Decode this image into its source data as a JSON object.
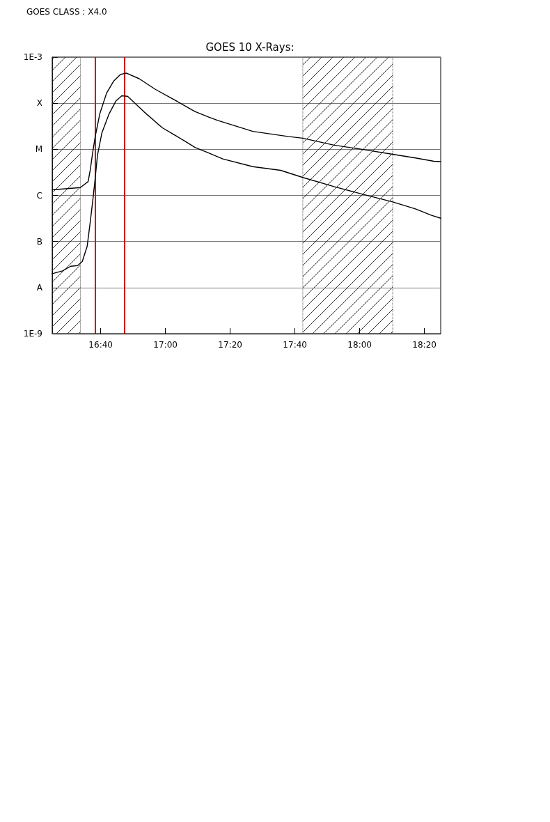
{
  "chart_data": {
    "type": "line",
    "title": "GOES 10 X-Rays:",
    "annotations": [
      "GOES CLASS : X4.0"
    ],
    "series": [
      {
        "color": "#000000",
        "x": [
          16.417,
          16.562,
          16.602,
          16.613,
          16.625,
          16.638,
          16.662,
          16.697,
          16.733,
          16.768,
          16.798,
          16.865,
          16.948,
          17.068,
          17.152,
          17.223,
          17.272,
          17.45,
          17.63,
          17.707,
          17.868,
          18.012,
          18.17,
          18.287,
          18.382,
          18.417
        ],
        "values": [
          1.32e-06,
          1.48e-06,
          2e-06,
          3.6e-06,
          8.3e-06,
          1.86e-05,
          5.9e-05,
          0.000166,
          0.0003,
          0.00042,
          0.00045,
          0.00034,
          0.0002,
          0.000105,
          6.6e-05,
          5e-05,
          4.2e-05,
          2.45e-05,
          1.9e-05,
          1.74e-05,
          1.23e-05,
          1e-05,
          7.8e-06,
          6.5e-06,
          5.5e-06,
          5.4e-06
        ]
      },
      {
        "color": "#000000",
        "x": [
          16.417,
          16.47,
          16.512,
          16.548,
          16.572,
          16.597,
          16.612,
          16.625,
          16.638,
          16.65,
          16.673,
          16.71,
          16.745,
          16.775,
          16.805,
          16.888,
          16.983,
          17.103,
          17.152,
          17.223,
          17.295,
          17.45,
          17.593,
          17.707,
          17.868,
          18.012,
          18.17,
          18.287,
          18.37,
          18.417
        ],
        "values": [
          2e-08,
          2.3e-08,
          2.9e-08,
          3e-08,
          3.7e-08,
          7.9e-08,
          2.5e-07,
          7.2e-07,
          2.3e-06,
          7.4e-06,
          2.3e-05,
          5.9e-05,
          0.000112,
          0.000145,
          0.000141,
          6.6e-05,
          2.95e-05,
          1.48e-05,
          1.1e-05,
          8.3e-06,
          6.2e-06,
          4.2e-06,
          3.5e-06,
          2.45e-06,
          1.55e-06,
          1.07e-06,
          7.2e-07,
          5.1e-07,
          3.7e-07,
          3.2e-07
        ]
      }
    ],
    "xlim": [
      16.417,
      18.417
    ],
    "xticks": [
      {
        "value": 16.6667,
        "label": "16:40"
      },
      {
        "value": 17,
        "label": "17:00"
      },
      {
        "value": 17.3333,
        "label": "17:20"
      },
      {
        "value": 17.6667,
        "label": "17:40"
      },
      {
        "value": 18,
        "label": "18:00"
      },
      {
        "value": 18.3333,
        "label": "18:20"
      }
    ],
    "ylim": [
      1e-09,
      0.001
    ],
    "yticks": [
      {
        "value": 1e-09,
        "label": "1E-9"
      },
      {
        "value": 1e-08,
        "label": "A"
      },
      {
        "value": 1e-07,
        "label": "B"
      },
      {
        "value": 1e-06,
        "label": "C"
      },
      {
        "value": 1e-05,
        "label": "M"
      },
      {
        "value": 0.0001,
        "label": "X"
      },
      {
        "value": 0.001,
        "label": "1E-3"
      }
    ],
    "log": "y",
    "grid": "y",
    "marker": "none",
    "line_style": "solid",
    "ref_lines": [
      {
        "axis": "x",
        "value": 16.635,
        "color": "#cc0000"
      },
      {
        "axis": "x",
        "value": 16.785,
        "color": "#cc0000"
      }
    ],
    "bands": [
      {
        "axis": "x",
        "from": 16.417,
        "to": 16.562
      },
      {
        "axis": "x",
        "from": 17.707,
        "to": 18.17
      }
    ]
  }
}
